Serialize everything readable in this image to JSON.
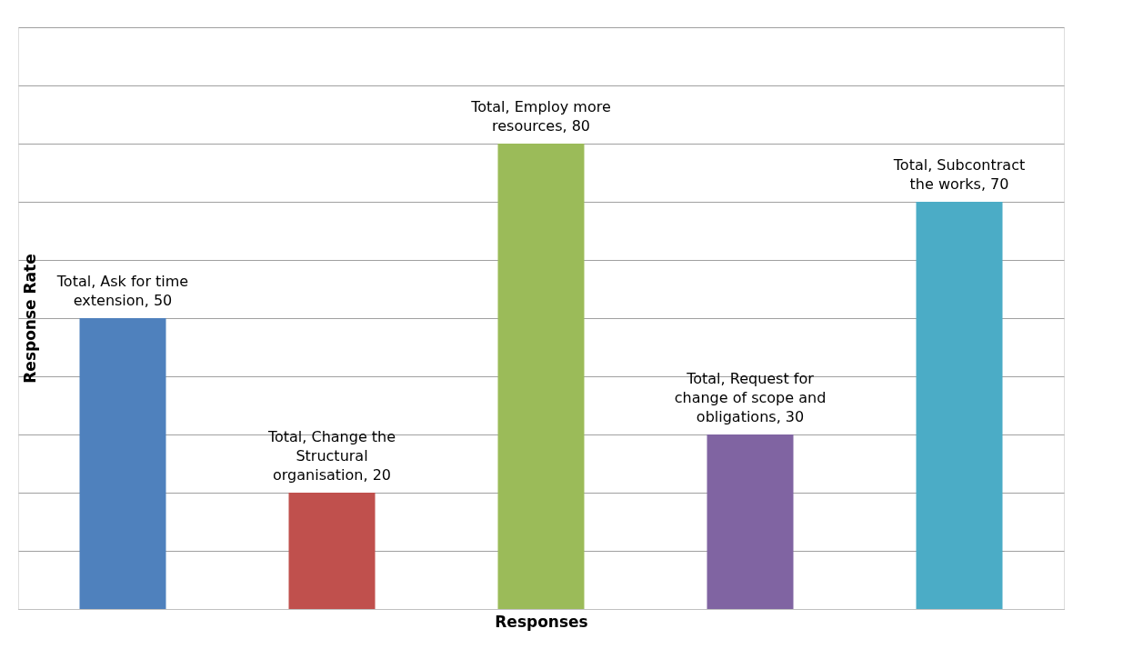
{
  "chart_data": {
    "type": "bar",
    "xlabel": "Responses",
    "ylabel": "Response Rate",
    "categories": [
      null,
      null,
      null,
      null,
      null
    ],
    "values": [
      50,
      20,
      80,
      30,
      70
    ],
    "colors": [
      "#4f81bd",
      "#c0504d",
      "#9bbb59",
      "#8064a2",
      "#4bacc6"
    ],
    "value_labels": [
      "Total, Ask for time extension, 50",
      "Total, Change the Structural organisation, 20",
      "Total, Employ more resources, 80",
      "Total, Request for change of scope and obligations, 30",
      "Total, Subcontract the works, 70"
    ],
    "ylim": [
      0,
      100
    ],
    "yticks": [
      {
        "value": 0,
        "label": null
      },
      {
        "value": 10,
        "label": null
      },
      {
        "value": 20,
        "label": null
      },
      {
        "value": 30,
        "label": null
      },
      {
        "value": 40,
        "label": null
      },
      {
        "value": 50,
        "label": null
      },
      {
        "value": 60,
        "label": null
      },
      {
        "value": 70,
        "label": null
      },
      {
        "value": 80,
        "label": null
      },
      {
        "value": 90,
        "label": null
      },
      {
        "value": 100,
        "label": null
      }
    ],
    "grid": "y",
    "tick_labels": false
  }
}
